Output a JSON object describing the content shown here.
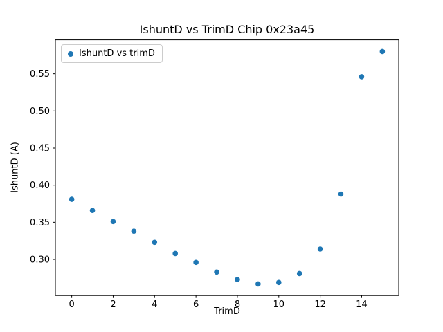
{
  "chart_data": {
    "type": "scatter",
    "title": "IshuntD vs TrimD Chip 0x23a45",
    "xlabel": "TrimD",
    "ylabel": "IshuntD (A)",
    "legend": [
      "IshuntD vs trimD"
    ],
    "legend_position": "upper left",
    "marker_color": "#1f77b4",
    "x": [
      0,
      1,
      2,
      3,
      4,
      5,
      6,
      7,
      8,
      9,
      10,
      11,
      12,
      13,
      14,
      15
    ],
    "y": [
      0.381,
      0.366,
      0.351,
      0.338,
      0.323,
      0.308,
      0.296,
      0.283,
      0.273,
      0.267,
      0.269,
      0.281,
      0.314,
      0.388,
      0.546,
      0.58
    ],
    "xlim": [
      -0.79,
      15.79
    ],
    "ylim": [
      0.2514,
      0.5957
    ],
    "xticks": [
      "0",
      "2",
      "4",
      "6",
      "8",
      "10",
      "12",
      "14"
    ],
    "yticks": [
      "0.30",
      "0.35",
      "0.40",
      "0.45",
      "0.50",
      "0.55"
    ],
    "grid": false
  }
}
